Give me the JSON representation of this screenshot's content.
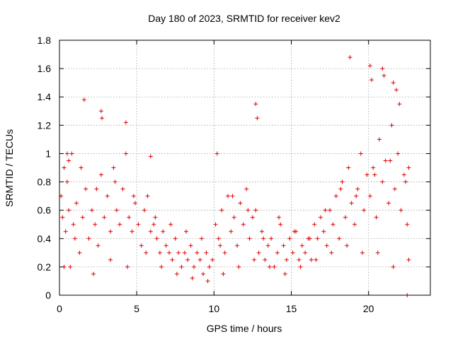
{
  "chart_data": {
    "type": "scatter",
    "title": "Day 180 of 2023, SRMTID for receiver kev2",
    "xlabel": "GPS time / hours",
    "ylabel": "SRMTID / TECUs",
    "xlim": [
      0,
      24
    ],
    "ylim": [
      0,
      1.8
    ],
    "xticks": [
      0,
      5,
      10,
      15,
      20
    ],
    "xtick_labels": [
      "0",
      "5",
      "10",
      "15",
      "20"
    ],
    "yticks": [
      0,
      0.2,
      0.4,
      0.6,
      0.8,
      1,
      1.2,
      1.4,
      1.6,
      1.8
    ],
    "ytick_labels": [
      "0",
      "0.2",
      "0.4",
      "0.6",
      "0.8",
      "1",
      "1.2",
      "1.4",
      "1.6",
      "1.8"
    ],
    "grid": true,
    "marker": "plus",
    "series": [
      {
        "name": "SRMTID",
        "color": "#e00000",
        "x": [
          0.1,
          0.2,
          0.3,
          0.4,
          0.5,
          0.6,
          0.7,
          0.9,
          1.1,
          1.3,
          1.5,
          1.7,
          1.9,
          2.1,
          2.3,
          2.5,
          2.7,
          2.9,
          3.1,
          3.3,
          3.5,
          3.7,
          3.9,
          4.1,
          4.3,
          4.5,
          4.7,
          4.9,
          5.1,
          5.3,
          5.5,
          5.7,
          5.9,
          6.1,
          6.3,
          6.5,
          6.7,
          6.9,
          7.1,
          7.3,
          7.5,
          7.7,
          7.9,
          8.1,
          8.3,
          8.5,
          8.7,
          8.9,
          9.1,
          9.3,
          9.5,
          9.7,
          9.9,
          10.1,
          10.3,
          10.5,
          10.7,
          10.9,
          11.1,
          11.3,
          11.5,
          11.7,
          11.9,
          12.1,
          12.3,
          12.5,
          12.7,
          12.9,
          13.1,
          13.3,
          13.5,
          13.7,
          13.9,
          14.1,
          14.3,
          14.5,
          14.7,
          14.9,
          15.1,
          15.3,
          15.5,
          15.7,
          15.9,
          16.1,
          16.3,
          16.5,
          16.7,
          16.9,
          17.1,
          17.3,
          17.5,
          17.7,
          17.9,
          18.1,
          18.3,
          18.5,
          18.7,
          18.9,
          19.1,
          19.3,
          19.5,
          19.7,
          19.9,
          20.1,
          20.3,
          20.5,
          20.7,
          20.9,
          21.1,
          21.3,
          21.5,
          21.7,
          21.9,
          22.1,
          22.3,
          22.5,
          22.6,
          0.3,
          0.8,
          1.6,
          2.7,
          2.75,
          4.3,
          5.9,
          10.2,
          12.7,
          12.8,
          18.8,
          20.1,
          20.2,
          20.9,
          21.0,
          21.6,
          21.8,
          22.0,
          0.6,
          1.0,
          2.2,
          3.3,
          4.4,
          5.6,
          6.6,
          7.6,
          8.6,
          9.6,
          10.6,
          11.6,
          12.6,
          13.6,
          14.6,
          15.6,
          16.6,
          17.6,
          18.6,
          19.6,
          20.6,
          21.6,
          22.5,
          0.5,
          1.4,
          2.4,
          3.6,
          4.8,
          6.2,
          7.2,
          8.2,
          9.2,
          10.4,
          11.2,
          12.2,
          13.2,
          14.2,
          15.2,
          16.2,
          17.2,
          18.2,
          19.2,
          20.4,
          21.4,
          22.4,
          22.6
        ],
        "y": [
          0.7,
          0.55,
          0.9,
          0.45,
          0.8,
          0.6,
          0.2,
          0.5,
          0.65,
          0.3,
          0.55,
          0.75,
          0.4,
          0.6,
          0.5,
          0.35,
          0.85,
          0.55,
          0.7,
          0.45,
          0.9,
          0.6,
          0.5,
          0.75,
          1.0,
          0.55,
          0.45,
          0.65,
          0.5,
          0.35,
          0.6,
          0.7,
          0.45,
          0.5,
          0.4,
          0.3,
          0.45,
          0.35,
          0.3,
          0.25,
          0.4,
          0.3,
          0.2,
          0.3,
          0.25,
          0.35,
          0.2,
          0.3,
          0.25,
          0.15,
          0.3,
          0.2,
          0.25,
          0.5,
          0.4,
          0.6,
          0.3,
          0.7,
          0.45,
          0.55,
          0.35,
          0.65,
          0.5,
          0.75,
          0.4,
          0.55,
          0.6,
          0.3,
          0.45,
          0.25,
          0.35,
          0.4,
          0.2,
          0.3,
          0.5,
          0.35,
          0.25,
          0.4,
          0.3,
          0.45,
          0.25,
          0.35,
          0.3,
          0.4,
          0.25,
          0.5,
          0.4,
          0.55,
          0.45,
          0.35,
          0.6,
          0.5,
          0.7,
          0.4,
          0.8,
          0.55,
          0.9,
          0.65,
          0.5,
          0.75,
          1.0,
          0.6,
          0.85,
          0.7,
          0.9,
          0.55,
          1.1,
          0.8,
          0.95,
          0.65,
          1.2,
          0.75,
          1.0,
          0.6,
          0.85,
          0.5,
          0.9,
          0.2,
          1.0,
          1.38,
          1.3,
          1.25,
          1.22,
          0.98,
          1.0,
          1.35,
          1.25,
          1.68,
          1.62,
          1.52,
          1.6,
          1.55,
          1.5,
          1.45,
          1.35,
          0.95,
          0.4,
          0.15,
          0.25,
          0.2,
          0.3,
          0.2,
          0.15,
          0.12,
          0.1,
          0.15,
          0.2,
          0.25,
          0.2,
          0.15,
          0.2,
          0.25,
          0.3,
          0.35,
          0.3,
          0.3,
          0.2,
          0.0,
          1.0,
          0.9,
          0.75,
          0.8,
          0.7,
          0.55,
          0.5,
          0.45,
          0.4,
          0.35,
          0.7,
          0.6,
          0.4,
          0.55,
          0.45,
          0.4,
          0.6,
          0.75,
          0.7,
          0.85,
          0.95,
          0.8,
          0.25
        ]
      }
    ]
  }
}
